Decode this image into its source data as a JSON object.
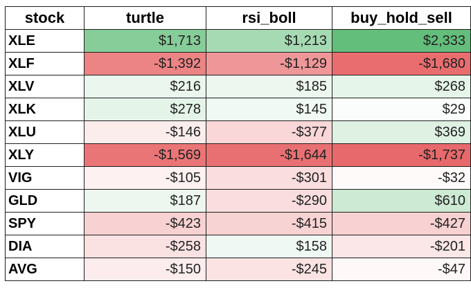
{
  "table": {
    "headers": [
      "stock",
      "turtle",
      "rsi_boll",
      "buy_hold_sell"
    ],
    "rows": [
      {
        "stock": "XLE",
        "cells": [
          {
            "text": "$1,713",
            "value": 1713
          },
          {
            "text": "$1,213",
            "value": 1213
          },
          {
            "text": "$2,333",
            "value": 2333
          }
        ]
      },
      {
        "stock": "XLF",
        "cells": [
          {
            "text": "-$1,392",
            "value": -1392
          },
          {
            "text": "-$1,129",
            "value": -1129
          },
          {
            "text": "-$1,680",
            "value": -1680
          }
        ]
      },
      {
        "stock": "XLV",
        "cells": [
          {
            "text": "$216",
            "value": 216
          },
          {
            "text": "$185",
            "value": 185
          },
          {
            "text": "$268",
            "value": 268
          }
        ]
      },
      {
        "stock": "XLK",
        "cells": [
          {
            "text": "$278",
            "value": 278
          },
          {
            "text": "$145",
            "value": 145
          },
          {
            "text": "$29",
            "value": 29
          }
        ]
      },
      {
        "stock": "XLU",
        "cells": [
          {
            "text": "-$146",
            "value": -146
          },
          {
            "text": "-$377",
            "value": -377
          },
          {
            "text": "$369",
            "value": 369
          }
        ]
      },
      {
        "stock": "XLY",
        "cells": [
          {
            "text": "-$1,569",
            "value": -1569
          },
          {
            "text": "-$1,644",
            "value": -1644
          },
          {
            "text": "-$1,737",
            "value": -1737
          }
        ]
      },
      {
        "stock": "VIG",
        "cells": [
          {
            "text": "-$105",
            "value": -105
          },
          {
            "text": "-$301",
            "value": -301
          },
          {
            "text": "-$32",
            "value": -32
          }
        ]
      },
      {
        "stock": "GLD",
        "cells": [
          {
            "text": "$187",
            "value": 187
          },
          {
            "text": "-$290",
            "value": -290
          },
          {
            "text": "$610",
            "value": 610
          }
        ]
      },
      {
        "stock": "SPY",
        "cells": [
          {
            "text": "-$423",
            "value": -423
          },
          {
            "text": "-$415",
            "value": -415
          },
          {
            "text": "-$427",
            "value": -427
          }
        ]
      },
      {
        "stock": "DIA",
        "cells": [
          {
            "text": "-$258",
            "value": -258
          },
          {
            "text": "$158",
            "value": 158
          },
          {
            "text": "-$201",
            "value": -201
          }
        ]
      },
      {
        "stock": "AVG",
        "cells": [
          {
            "text": "-$150",
            "value": -150
          },
          {
            "text": "-$245",
            "value": -245
          },
          {
            "text": "-$47",
            "value": -47
          }
        ]
      }
    ]
  },
  "colors": {
    "positive_max": "#63be7b",
    "negative_max": "#e8696b",
    "neutral": "#ffffff",
    "border": "#1e1e1e"
  }
}
